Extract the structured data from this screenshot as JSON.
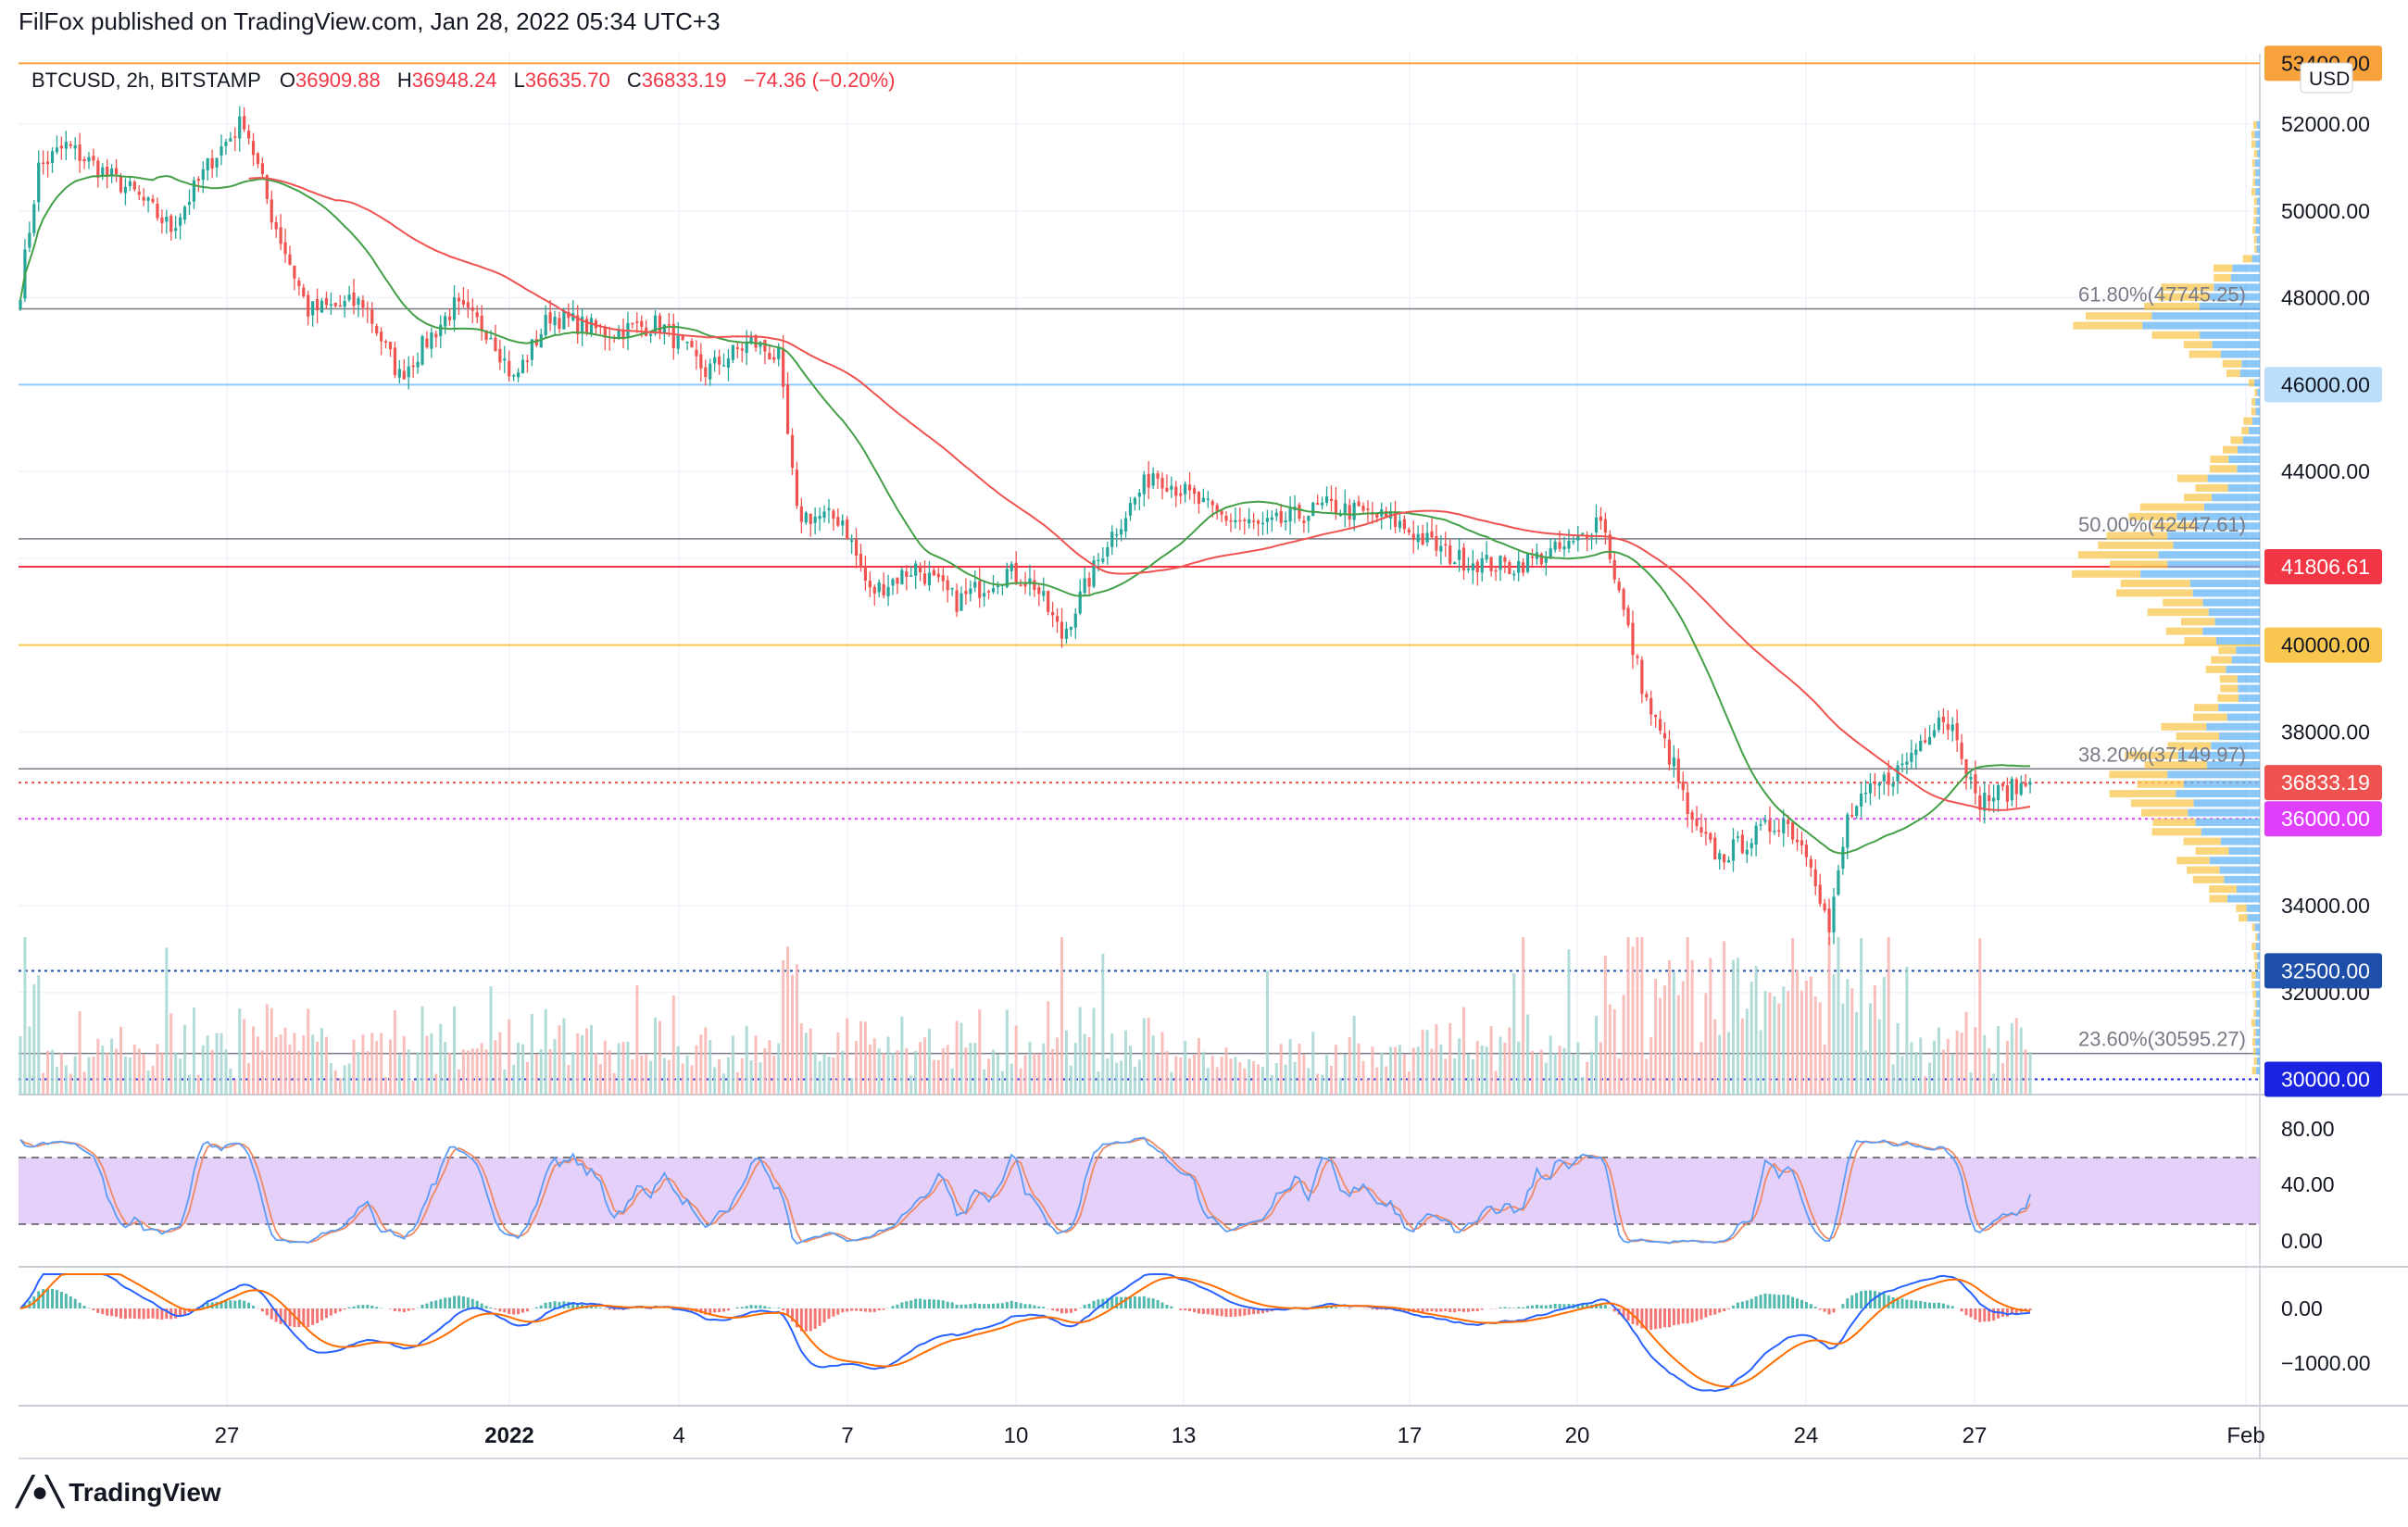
{
  "header": {
    "published_line": "FilFox published on TradingView.com, Jan 28, 2022 05:34 UTC+3"
  },
  "legend": {
    "symbol": "BTCUSD, 2h, BITSTAMP",
    "open_label": "O",
    "open_value": "36909.88",
    "high_label": "H",
    "high_value": "36948.24",
    "low_label": "L",
    "low_value": "36635.70",
    "close_label": "C",
    "close_value": "36833.19",
    "change": "−74.36 (−0.20%)"
  },
  "colors": {
    "up": "#26a69a",
    "down": "#ef5350",
    "ma_slow": "#ef5350",
    "ma_fast": "#43a047",
    "stoch_k": "#5b9cf6",
    "stoch_d": "#ef8a65",
    "stoch_band": "#e1c8f8",
    "macd": "#2962ff",
    "signal": "#ff6d00",
    "fib": "#787b86"
  },
  "price_axis": {
    "currency": "USD",
    "ticks": [
      "52000.00",
      "50000.00",
      "48000.00",
      "44000.00",
      "38000.00",
      "34000.00",
      "32000.00"
    ],
    "badges": [
      {
        "value": "53400.00",
        "bg": "#f7a23b",
        "fg": "#131722"
      },
      {
        "value": "46000.00",
        "bg": "#bbdefb",
        "fg": "#131722"
      },
      {
        "value": "41806.61",
        "bg": "#f23645",
        "fg": "#ffffff"
      },
      {
        "value": "40000.00",
        "bg": "#f9c74f",
        "fg": "#131722"
      },
      {
        "value": "36833.19",
        "bg": "#ef5350",
        "fg": "#ffffff"
      },
      {
        "value": "36000.00",
        "bg": "#e040fb",
        "fg": "#ffffff"
      },
      {
        "value": "32500.00",
        "bg": "#1e4fa8",
        "fg": "#ffffff"
      },
      {
        "value": "30000.00",
        "bg": "#1a23e0",
        "fg": "#ffffff"
      }
    ]
  },
  "fib_levels": [
    {
      "pct": "61.80%",
      "value": "47745.25",
      "label": "61.80%(47745.25)"
    },
    {
      "pct": "50.00%",
      "value": "42447.61",
      "label": "50.00%(42447.61)"
    },
    {
      "pct": "38.20%",
      "value": "37149.97",
      "label": "38.20%(37149.97)"
    },
    {
      "pct": "23.60%",
      "value": "30595.27",
      "label": "23.60%(30595.27)"
    }
  ],
  "stoch_axis": {
    "ticks": [
      "80.00",
      "40.00",
      "0.00"
    ]
  },
  "macd_axis": {
    "ticks": [
      "0.00",
      "−1000.00"
    ]
  },
  "time_axis": {
    "labels": [
      "27",
      "2022",
      "4",
      "7",
      "10",
      "13",
      "17",
      "20",
      "24",
      "27",
      "Feb"
    ]
  },
  "footer": {
    "brand": "TradingView"
  },
  "chart_data": {
    "type": "candlestick",
    "symbol": "BTCUSD",
    "interval": "2h",
    "exchange": "BITSTAMP",
    "ylim": [
      29600,
      53600
    ],
    "x_labels": [
      "27",
      "2022",
      "4",
      "7",
      "10",
      "13",
      "17",
      "20",
      "24",
      "27",
      "Feb"
    ],
    "anchors": [
      {
        "t": 0,
        "p": 48200
      },
      {
        "t": 4,
        "p": 51000
      },
      {
        "t": 10,
        "p": 51500
      },
      {
        "t": 25,
        "p": 50400
      },
      {
        "t": 33,
        "p": 49600
      },
      {
        "t": 42,
        "p": 51200
      },
      {
        "t": 49,
        "p": 52100
      },
      {
        "t": 55,
        "p": 49900
      },
      {
        "t": 63,
        "p": 47700
      },
      {
        "t": 75,
        "p": 47900
      },
      {
        "t": 83,
        "p": 46200
      },
      {
        "t": 95,
        "p": 47800
      },
      {
        "t": 103,
        "p": 47200
      },
      {
        "t": 108,
        "p": 46100
      },
      {
        "t": 116,
        "p": 47600
      },
      {
        "t": 128,
        "p": 47200
      },
      {
        "t": 140,
        "p": 47400
      },
      {
        "t": 150,
        "p": 46300
      },
      {
        "t": 160,
        "p": 47000
      },
      {
        "t": 166,
        "p": 46600
      },
      {
        "t": 170,
        "p": 43000
      },
      {
        "t": 180,
        "p": 42900
      },
      {
        "t": 186,
        "p": 41200
      },
      {
        "t": 196,
        "p": 41800
      },
      {
        "t": 205,
        "p": 41000
      },
      {
        "t": 216,
        "p": 41700
      },
      {
        "t": 222,
        "p": 41400
      },
      {
        "t": 228,
        "p": 40200
      },
      {
        "t": 238,
        "p": 42400
      },
      {
        "t": 248,
        "p": 44000
      },
      {
        "t": 262,
        "p": 43000
      },
      {
        "t": 272,
        "p": 42700
      },
      {
        "t": 286,
        "p": 43200
      },
      {
        "t": 300,
        "p": 42900
      },
      {
        "t": 314,
        "p": 42000
      },
      {
        "t": 326,
        "p": 41800
      },
      {
        "t": 340,
        "p": 42300
      },
      {
        "t": 346,
        "p": 43000
      },
      {
        "t": 352,
        "p": 40300
      },
      {
        "t": 356,
        "p": 38700
      },
      {
        "t": 362,
        "p": 37200
      },
      {
        "t": 366,
        "p": 35800
      },
      {
        "t": 372,
        "p": 35100
      },
      {
        "t": 378,
        "p": 35500
      },
      {
        "t": 386,
        "p": 36000
      },
      {
        "t": 392,
        "p": 35100
      },
      {
        "t": 396,
        "p": 33400
      },
      {
        "t": 400,
        "p": 36000
      },
      {
        "t": 406,
        "p": 36700
      },
      {
        "t": 412,
        "p": 37200
      },
      {
        "t": 420,
        "p": 38400
      },
      {
        "t": 424,
        "p": 38000
      },
      {
        "t": 428,
        "p": 36400
      },
      {
        "t": 434,
        "p": 36600
      },
      {
        "t": 440,
        "p": 36830
      }
    ],
    "horizontal_lines": [
      53400,
      46000,
      41806.61,
      40000,
      36833.19,
      36000,
      32500,
      30000
    ],
    "last_close": 36833.19,
    "indicators": [
      "MA slow",
      "MA fast",
      "Volume",
      "Volume profile",
      "Stochastic",
      "MACD"
    ]
  }
}
